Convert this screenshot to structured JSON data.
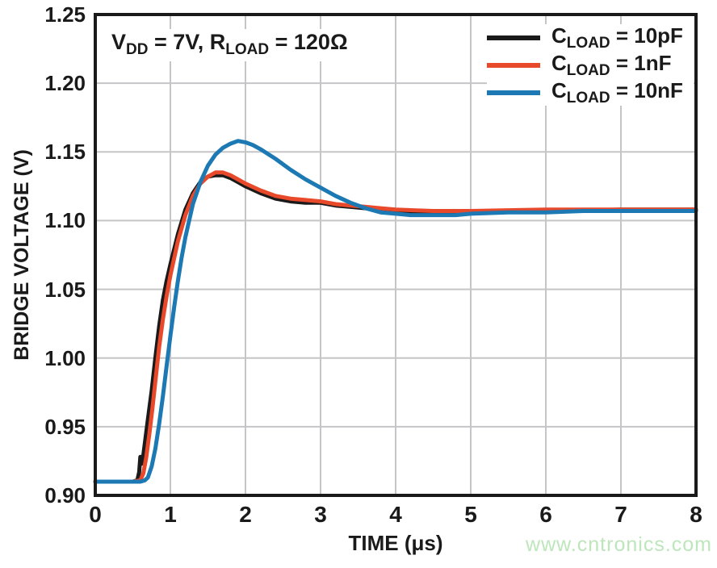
{
  "figure": {
    "annotation": {
      "pre": "V",
      "sub1": "DD",
      "mid": " = 7V, R",
      "sub2": "LOAD",
      "post": " = 120Ω",
      "full_text": "VDD = 7V, RLOAD = 120Ω"
    },
    "watermark": "www.cntronics.com"
  },
  "chart_data": {
    "type": "line",
    "title": "",
    "xlabel": "TIME (μs)",
    "ylabel": "BRIDGE VOLTAGE (V)",
    "xlim": [
      0,
      8
    ],
    "ylim": [
      0.9,
      1.25
    ],
    "x_ticks": [
      "0",
      "1",
      "2",
      "3",
      "4",
      "5",
      "6",
      "7",
      "8"
    ],
    "y_ticks": [
      "0.90",
      "0.95",
      "1.00",
      "1.05",
      "1.10",
      "1.15",
      "1.20",
      "1.25"
    ],
    "grid": true,
    "legend_position": "top-right-inside",
    "colors": {
      "axis": "#1a1a1a",
      "grid": "#c5c5c7",
      "background": "#ffffff",
      "watermark": "#bde6bb"
    },
    "series": [
      {
        "name": "CLOAD = 10pF",
        "label_pre": "C",
        "label_sub": "LOAD",
        "label_post": " = 10pF",
        "color": "#1a1a1a",
        "points": [
          [
            0,
            0.91
          ],
          [
            0.3,
            0.91
          ],
          [
            0.5,
            0.91
          ],
          [
            0.56,
            0.911
          ],
          [
            0.585,
            0.917
          ],
          [
            0.6,
            0.928
          ],
          [
            0.615,
            0.923
          ],
          [
            0.63,
            0.925
          ],
          [
            0.66,
            0.938
          ],
          [
            0.7,
            0.955
          ],
          [
            0.75,
            0.976
          ],
          [
            0.8,
            1.0
          ],
          [
            0.85,
            1.023
          ],
          [
            0.9,
            1.042
          ],
          [
            0.95,
            1.056
          ],
          [
            1.0,
            1.068
          ],
          [
            1.1,
            1.09
          ],
          [
            1.2,
            1.108
          ],
          [
            1.3,
            1.12
          ],
          [
            1.4,
            1.128
          ],
          [
            1.5,
            1.132
          ],
          [
            1.6,
            1.133
          ],
          [
            1.7,
            1.133
          ],
          [
            1.8,
            1.131
          ],
          [
            1.9,
            1.128
          ],
          [
            2.0,
            1.125
          ],
          [
            2.2,
            1.12
          ],
          [
            2.4,
            1.116
          ],
          [
            2.6,
            1.114
          ],
          [
            2.8,
            1.113
          ],
          [
            3.0,
            1.113
          ],
          [
            3.2,
            1.111
          ],
          [
            3.4,
            1.11
          ],
          [
            3.6,
            1.109
          ],
          [
            3.8,
            1.108
          ],
          [
            4.0,
            1.107
          ],
          [
            4.5,
            1.106
          ],
          [
            5.0,
            1.107
          ],
          [
            5.5,
            1.107
          ],
          [
            6.0,
            1.107
          ],
          [
            7.0,
            1.108
          ],
          [
            8.0,
            1.108
          ]
        ]
      },
      {
        "name": "CLOAD = 1nF",
        "label_pre": "C",
        "label_sub": "LOAD",
        "label_post": " = 1nF",
        "color": "#e8492b",
        "points": [
          [
            0,
            0.91
          ],
          [
            0.5,
            0.91
          ],
          [
            0.6,
            0.911
          ],
          [
            0.64,
            0.916
          ],
          [
            0.68,
            0.928
          ],
          [
            0.72,
            0.945
          ],
          [
            0.76,
            0.963
          ],
          [
            0.8,
            0.983
          ],
          [
            0.85,
            1.008
          ],
          [
            0.9,
            1.028
          ],
          [
            0.95,
            1.045
          ],
          [
            1.0,
            1.06
          ],
          [
            1.1,
            1.085
          ],
          [
            1.2,
            1.104
          ],
          [
            1.3,
            1.118
          ],
          [
            1.4,
            1.127
          ],
          [
            1.5,
            1.132
          ],
          [
            1.6,
            1.135
          ],
          [
            1.7,
            1.135
          ],
          [
            1.8,
            1.133
          ],
          [
            1.9,
            1.13
          ],
          [
            2.0,
            1.127
          ],
          [
            2.2,
            1.122
          ],
          [
            2.4,
            1.118
          ],
          [
            2.6,
            1.116
          ],
          [
            2.8,
            1.115
          ],
          [
            3.0,
            1.114
          ],
          [
            3.2,
            1.112
          ],
          [
            3.4,
            1.111
          ],
          [
            3.6,
            1.11
          ],
          [
            3.8,
            1.109
          ],
          [
            4.0,
            1.108
          ],
          [
            4.5,
            1.107
          ],
          [
            5.0,
            1.107
          ],
          [
            6.0,
            1.108
          ],
          [
            7.0,
            1.108
          ],
          [
            8.0,
            1.108
          ]
        ]
      },
      {
        "name": "CLOAD = 10nF",
        "label_pre": "C",
        "label_sub": "LOAD",
        "label_post": " = 10nF",
        "color": "#1d79b4",
        "points": [
          [
            0,
            0.91
          ],
          [
            0.6,
            0.91
          ],
          [
            0.66,
            0.911
          ],
          [
            0.7,
            0.913
          ],
          [
            0.75,
            0.921
          ],
          [
            0.8,
            0.934
          ],
          [
            0.85,
            0.952
          ],
          [
            0.9,
            0.972
          ],
          [
            0.95,
            0.994
          ],
          [
            1.0,
            1.016
          ],
          [
            1.05,
            1.037
          ],
          [
            1.1,
            1.056
          ],
          [
            1.15,
            1.073
          ],
          [
            1.2,
            1.088
          ],
          [
            1.3,
            1.112
          ],
          [
            1.4,
            1.128
          ],
          [
            1.5,
            1.14
          ],
          [
            1.6,
            1.148
          ],
          [
            1.7,
            1.153
          ],
          [
            1.8,
            1.156
          ],
          [
            1.9,
            1.158
          ],
          [
            2.0,
            1.157
          ],
          [
            2.1,
            1.155
          ],
          [
            2.2,
            1.152
          ],
          [
            2.4,
            1.145
          ],
          [
            2.6,
            1.137
          ],
          [
            2.8,
            1.13
          ],
          [
            3.0,
            1.124
          ],
          [
            3.2,
            1.118
          ],
          [
            3.4,
            1.113
          ],
          [
            3.6,
            1.109
          ],
          [
            3.8,
            1.106
          ],
          [
            4.0,
            1.105
          ],
          [
            4.2,
            1.104
          ],
          [
            4.5,
            1.104
          ],
          [
            4.8,
            1.104
          ],
          [
            5.0,
            1.105
          ],
          [
            5.5,
            1.106
          ],
          [
            6.0,
            1.106
          ],
          [
            6.5,
            1.107
          ],
          [
            7.0,
            1.107
          ],
          [
            8.0,
            1.107
          ]
        ]
      }
    ]
  }
}
